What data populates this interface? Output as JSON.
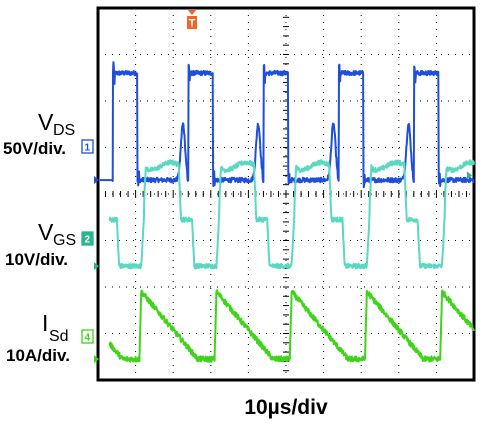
{
  "chart_data": {
    "type": "line",
    "title": "",
    "xlabel": "10µs/div",
    "xlim_div": [
      0,
      10
    ],
    "ylim_div": [
      -4,
      4
    ],
    "grid": true,
    "grid_style": "dotted",
    "trigger_marker": {
      "label": "T",
      "color": "#f26522",
      "x_div": 2.5
    },
    "traces": [
      {
        "name_main": "V",
        "name_sub": "DS",
        "scale": "50V/div.",
        "channel": "1",
        "color": "#1f4fd8",
        "marker_color": "#1f4fd8",
        "ground_level_div": 0.3,
        "low_level_div": 0.3,
        "high_level_div": 2.6,
        "period_div": 2.0,
        "first_rise_div": 0.4,
        "pulse_width_div": 0.65,
        "ringing_amplitude_div": 1.2
      },
      {
        "name_main": "V",
        "name_sub": "GS",
        "scale": "10V/div.",
        "channel": "2",
        "color": "#5ad8c0",
        "marker_color": "#2bb58d",
        "ground_level_div": -1.55,
        "low_level_div": -1.55,
        "plateau_level_div": -0.55,
        "high_level_div": 0.6,
        "period_div": 2.0,
        "first_rise_div": 1.15,
        "high_width_div": 1.0,
        "plateau_width_div": 0.35
      },
      {
        "name_main": "I",
        "name_sub": "Sd",
        "scale": "10A/div.",
        "channel": "4",
        "color": "#3fd41a",
        "marker_color": "#3fd41a",
        "ground_level_div": -3.55,
        "low_level_div": -3.55,
        "peak_level_div": -2.1,
        "period_div": 2.0,
        "first_rise_div": 1.1,
        "fall_duration_div": 1.55
      }
    ]
  }
}
